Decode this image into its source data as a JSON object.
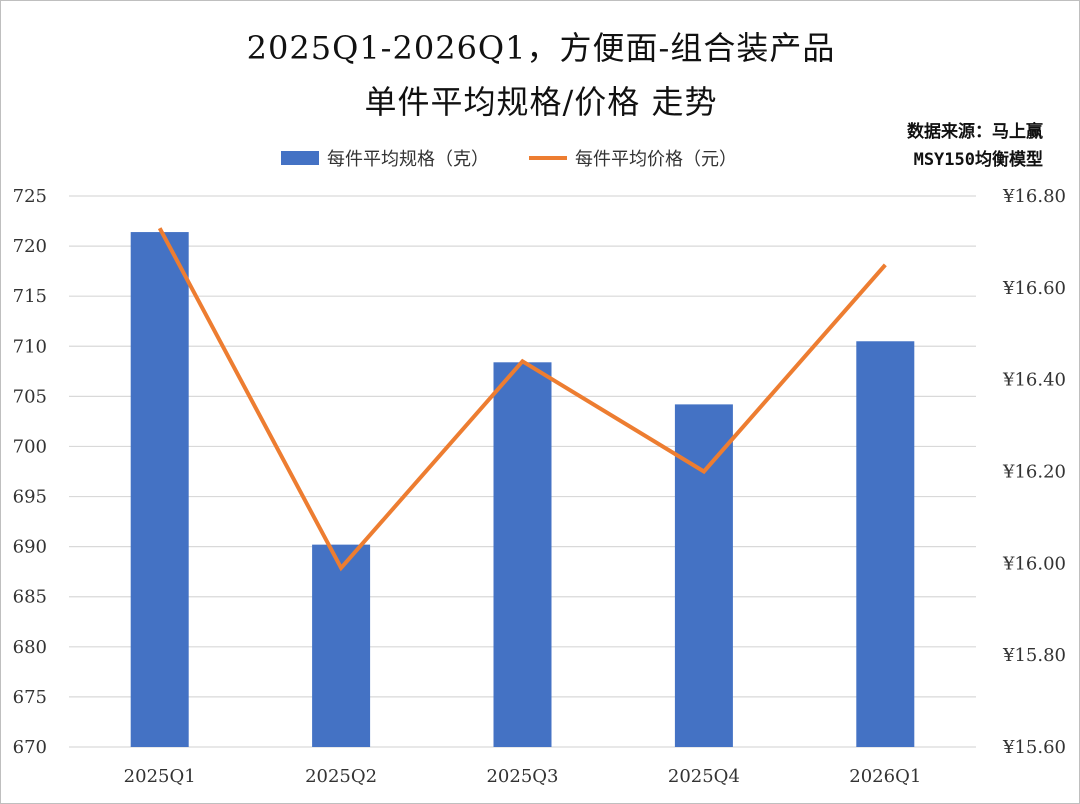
{
  "title": {
    "line1": "2025Q1-2026Q1，方便面-组合装产品",
    "line2": "单件平均规格/价格 走势"
  },
  "source": {
    "line1": "数据来源：马上赢",
    "line2": "MSY150均衡模型"
  },
  "chart_data": {
    "type": "bar",
    "categories": [
      "2025Q1",
      "2025Q2",
      "2025Q3",
      "2025Q4",
      "2026Q1"
    ],
    "series": [
      {
        "name": "每件平均规格（克）",
        "type": "bar",
        "axis": "left",
        "color": "#4472C4",
        "values": [
          721.4,
          690.2,
          708.4,
          704.2,
          710.5
        ]
      },
      {
        "name": "每件平均价格（元）",
        "type": "line",
        "axis": "right",
        "color": "#ED7D31",
        "values": [
          16.73,
          15.99,
          16.44,
          16.2,
          16.65
        ]
      }
    ],
    "y_left": {
      "min": 670,
      "max": 725,
      "ticks": [
        "670",
        "675",
        "680",
        "685",
        "690",
        "695",
        "700",
        "705",
        "710",
        "715",
        "720",
        "725"
      ]
    },
    "y_right": {
      "min": 15.6,
      "max": 16.8,
      "ticks": [
        "¥15.60",
        "¥15.80",
        "¥16.00",
        "¥16.20",
        "¥16.40",
        "¥16.60",
        "¥16.80"
      ]
    },
    "grid": true,
    "legend_position": "top"
  }
}
